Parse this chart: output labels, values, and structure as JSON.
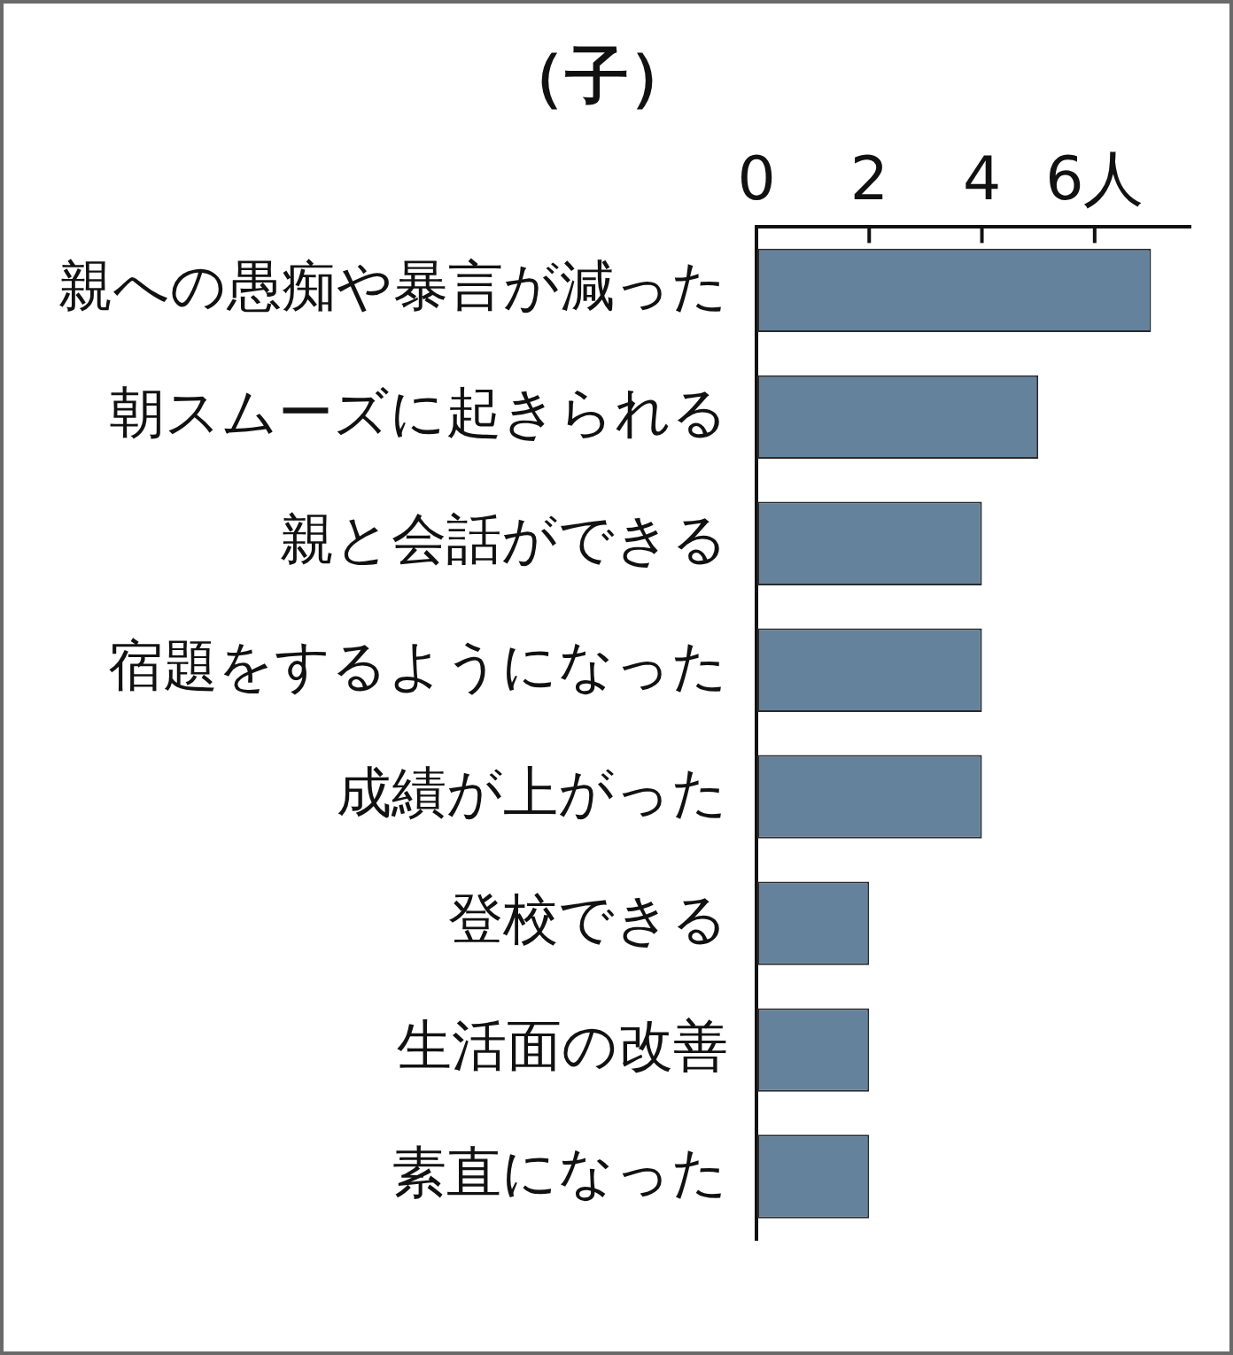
{
  "chart_data": {
    "type": "bar",
    "orientation": "horizontal",
    "title": "（子）",
    "categories": [
      "親への愚痴や暴言が減った",
      "朝スムーズに起きられる",
      "親と会話ができる",
      "宿題をするようになった",
      "成績が上がった",
      "登校できる",
      "生活面の改善",
      "素直になった"
    ],
    "values": [
      7,
      5,
      4,
      4,
      4,
      2,
      2,
      2
    ],
    "color": "#64829c",
    "xlim": [
      0,
      7.7
    ],
    "xticks": [
      0,
      2,
      4,
      {
        "value": 6,
        "label": "6人"
      }
    ],
    "grid": false,
    "legend": false
  }
}
